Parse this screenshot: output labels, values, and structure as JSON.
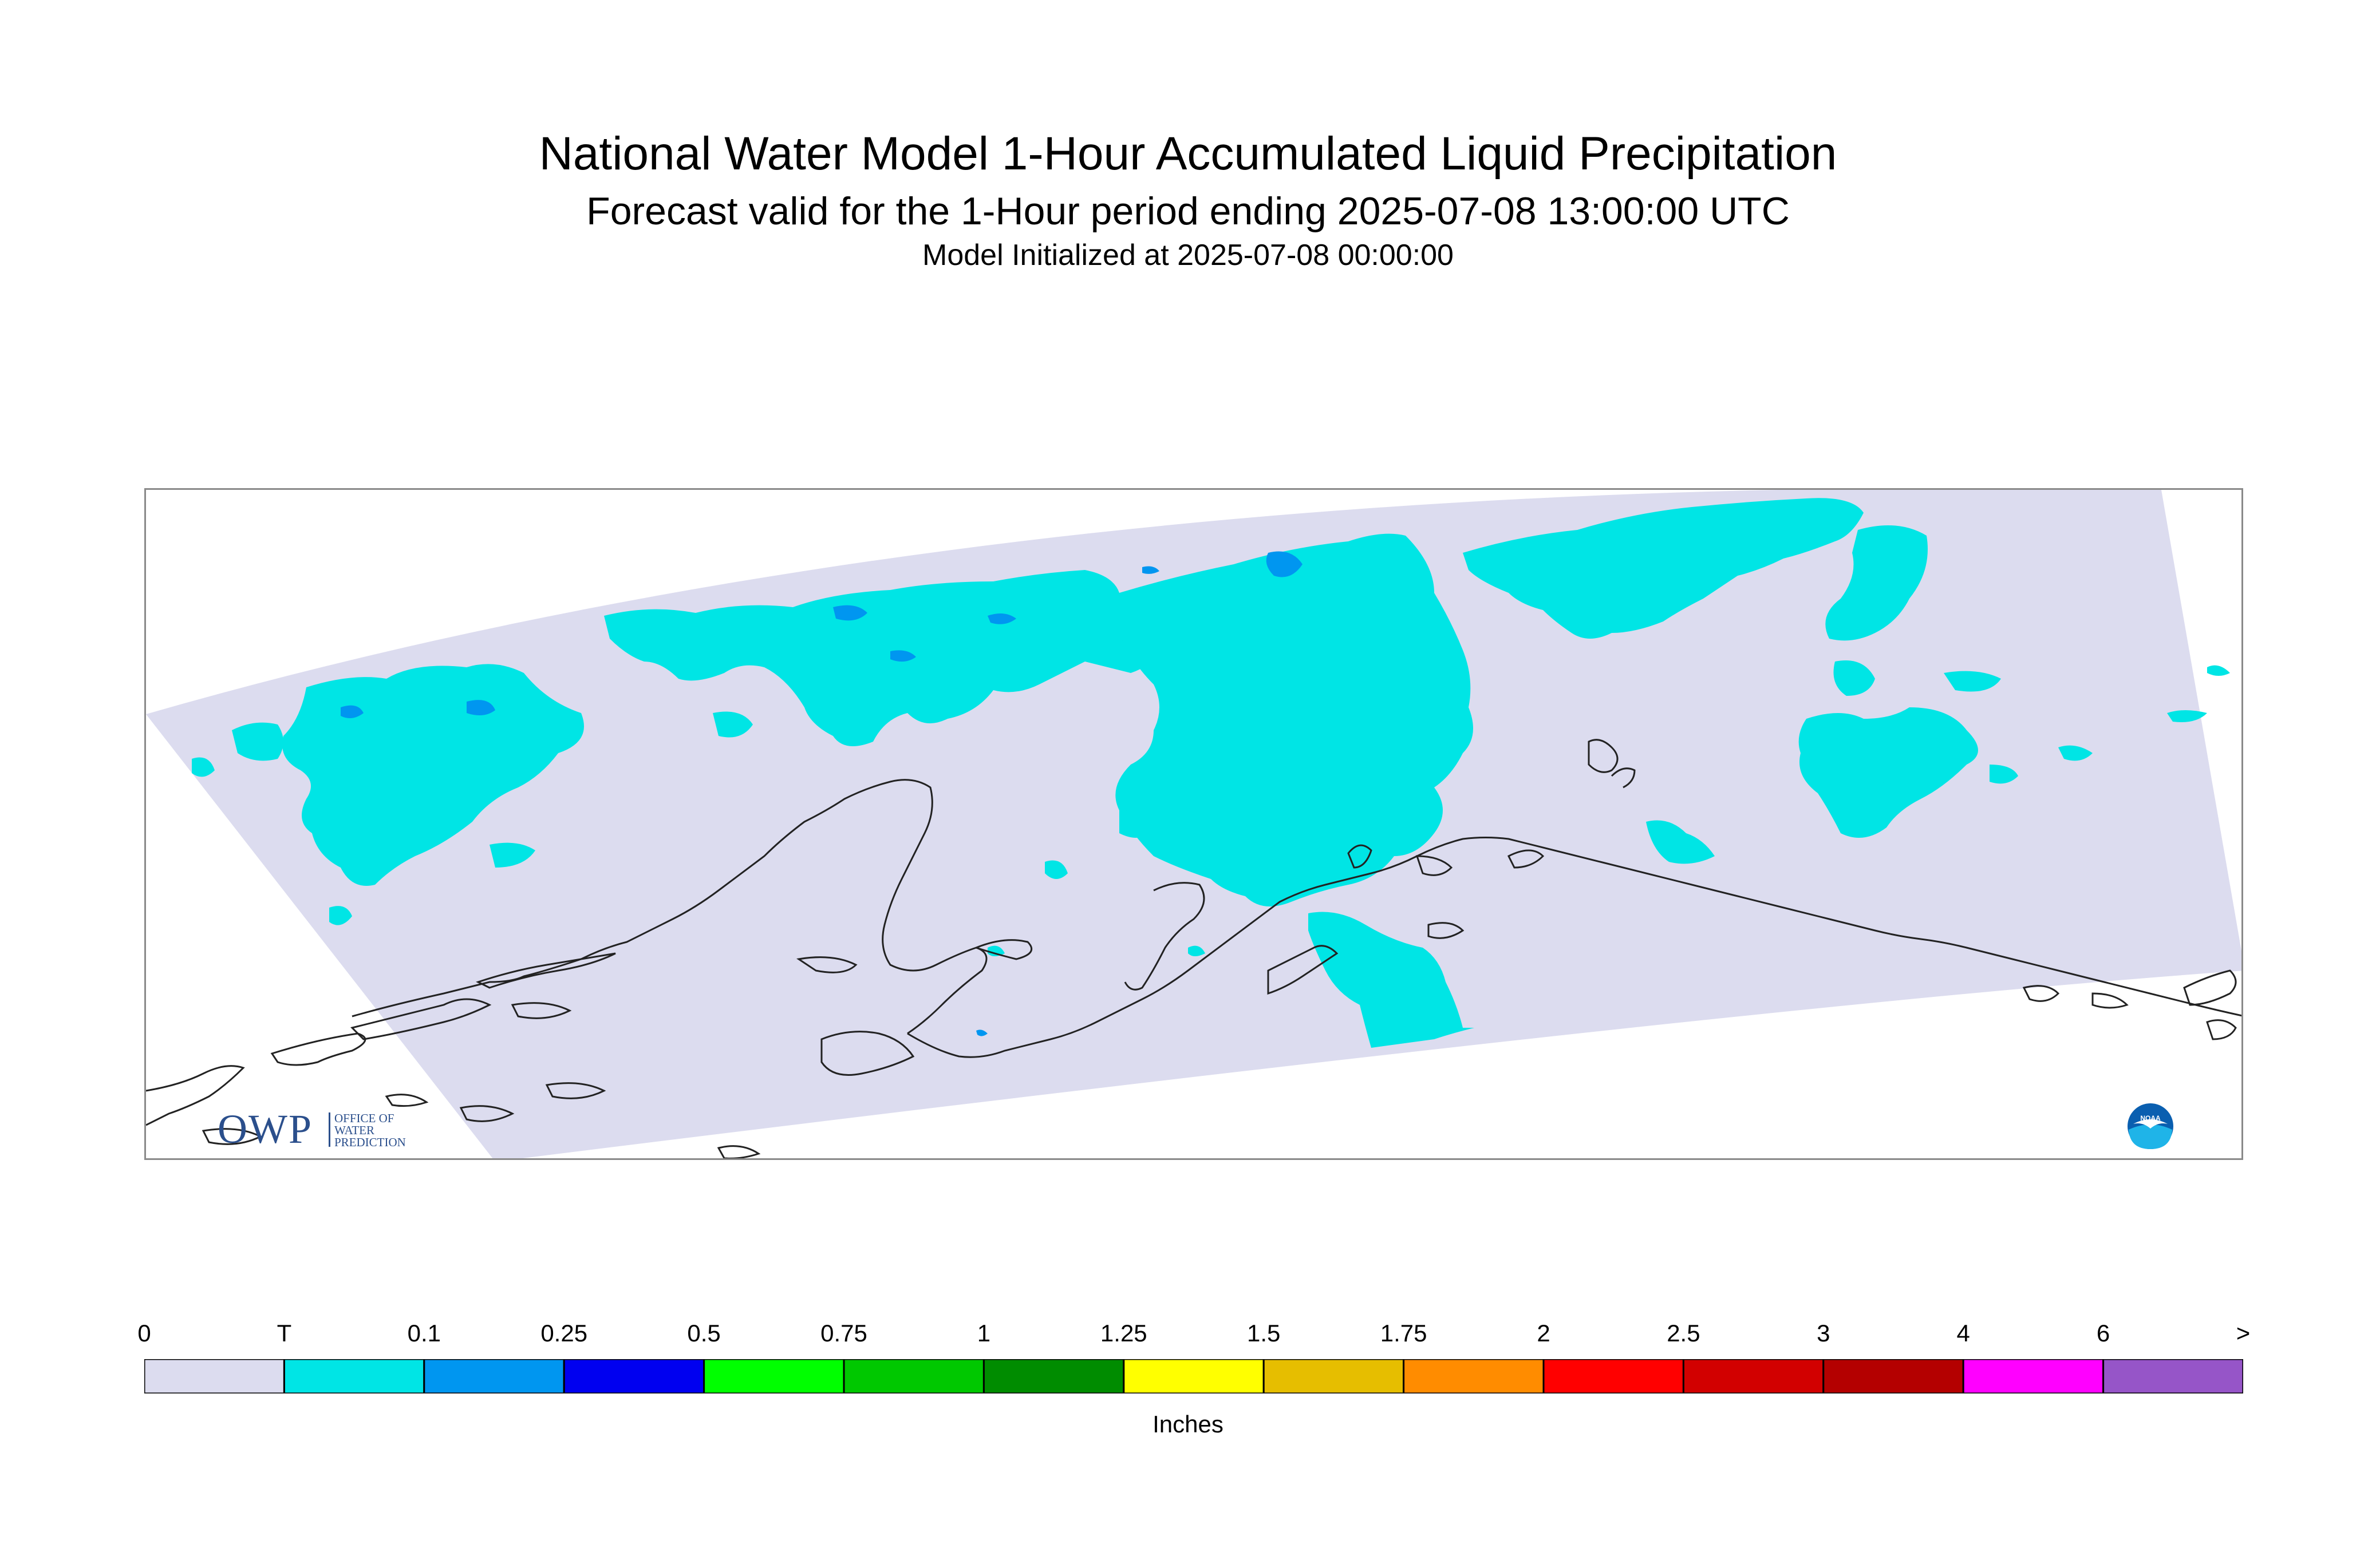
{
  "header": {
    "title": "National Water Model 1-Hour Accumulated Liquid Precipitation",
    "subtitle": "Forecast valid for the 1-Hour period ending 2025-07-08 13:00:00 UTC",
    "init_line": "Model Initialized at 2025-07-08 00:00:00"
  },
  "legend": {
    "units": "Inches",
    "tick_labels": [
      "0",
      "T",
      "0.1",
      "0.25",
      "0.5",
      "0.75",
      "1",
      "1.25",
      "1.5",
      "1.75",
      "2",
      "2.5",
      "3",
      "4",
      "6",
      ">"
    ],
    "colors": [
      "#dcdcef",
      "#00e5e5",
      "#0096f0",
      "#0000f0",
      "#00ff00",
      "#00c800",
      "#008c00",
      "#ffff00",
      "#e6be00",
      "#ff8c00",
      "#ff0000",
      "#d20000",
      "#b40000",
      "#ff00ff",
      "#9655c8"
    ]
  },
  "logos": {
    "owp_main": "OWP",
    "owp_line1": "OFFICE OF",
    "owp_line2": "WATER",
    "owp_line3": "PREDICTION",
    "noaa_label": "NOAA"
  },
  "colors": {
    "domain_background": "#dcdcef",
    "trace_precip": "#00e5e5",
    "light_precip": "#0096f0",
    "coastline": "#222222",
    "map_border": "#8a8a8a"
  }
}
